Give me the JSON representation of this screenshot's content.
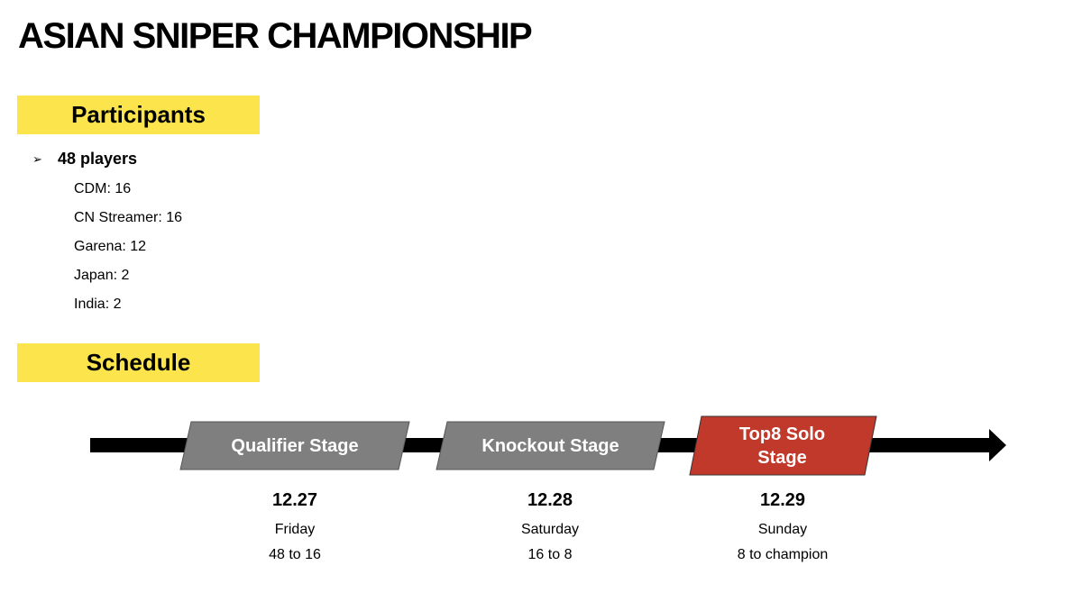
{
  "title": "ASIAN SNIPER CHAMPIONSHIP",
  "participants": {
    "label": "Participants",
    "total": "48 players",
    "items": [
      "CDM: 16",
      "CN Streamer: 16",
      "Garena: 12",
      "Japan: 2",
      "India: 2"
    ]
  },
  "schedule": {
    "label": "Schedule",
    "stages": [
      {
        "name": "Qualifier Stage",
        "date": "12.27",
        "day": "Friday",
        "range": "48 to 16",
        "color": "#7f7f7f"
      },
      {
        "name": "Knockout Stage",
        "date": "12.28",
        "day": "Saturday",
        "range": "16 to 8",
        "color": "#7f7f7f"
      },
      {
        "name": "Top8 Solo Stage",
        "date": "12.29",
        "day": "Sunday",
        "range": "8 to champion",
        "color": "#c0392b"
      }
    ]
  },
  "icons": {
    "bullet": "arrowhead-bullet-icon",
    "timeline": "timeline-arrow"
  }
}
